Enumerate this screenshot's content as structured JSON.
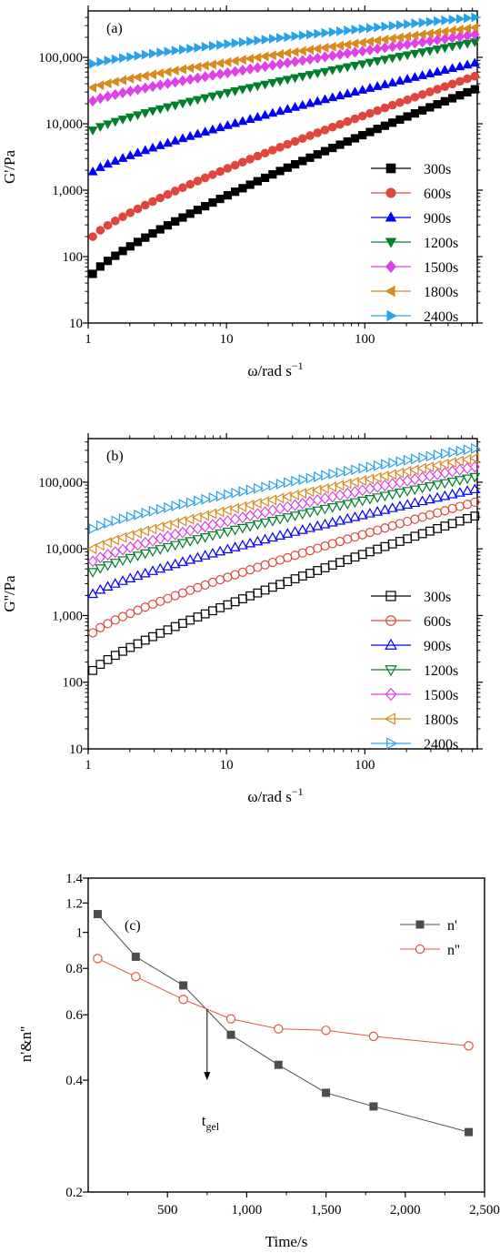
{
  "chart_data": [
    {
      "id": "a",
      "type": "scatter",
      "panel_label": "(a)",
      "xlabel_main": "ω/rad s",
      "xlabel_sup": "−1",
      "ylabel": "G'/Pa",
      "xscale": "log",
      "yscale": "log",
      "xlim": [
        1,
        650
      ],
      "ylim": [
        10,
        500000
      ],
      "xticks": [
        1,
        10,
        100
      ],
      "xtick_labels": [
        "1",
        "10",
        "100"
      ],
      "yticks": [
        10,
        100,
        1000,
        10000,
        100000
      ],
      "ytick_labels": [
        "10",
        "100",
        "1,000",
        "10,000",
        "100,000"
      ],
      "legend_position": "right",
      "marker_fill": "filled",
      "points_per_series": 52,
      "series": [
        {
          "name": "300s",
          "color": "#000000",
          "marker": "square",
          "y_start": 55,
          "y_end": 33000
        },
        {
          "name": "600s",
          "color": "#e0463c",
          "marker": "circle",
          "y_start": 200,
          "y_end": 52000
        },
        {
          "name": "900s",
          "color": "#0000ff",
          "marker": "triangle-up",
          "y_start": 1900,
          "y_end": 82000
        },
        {
          "name": "1200s",
          "color": "#00802b",
          "marker": "triangle-down",
          "y_start": 8000,
          "y_end": 170000
        },
        {
          "name": "1500s",
          "color": "#e040e8",
          "marker": "diamond",
          "y_start": 22000,
          "y_end": 220000
        },
        {
          "name": "1800s",
          "color": "#d98a1c",
          "marker": "triangle-left",
          "y_start": 35000,
          "y_end": 280000
        },
        {
          "name": "2400s",
          "color": "#29a3e8",
          "marker": "triangle-right",
          "y_start": 80000,
          "y_end": 400000
        }
      ]
    },
    {
      "id": "b",
      "type": "scatter",
      "panel_label": "(b)",
      "xlabel_main": "ω/rad s",
      "xlabel_sup": "−1",
      "ylabel": "G''/Pa",
      "xscale": "log",
      "yscale": "log",
      "xlim": [
        1,
        650
      ],
      "ylim": [
        10,
        450000
      ],
      "xticks": [
        1,
        10,
        100
      ],
      "xtick_labels": [
        "1",
        "10",
        "100"
      ],
      "yticks": [
        10,
        100,
        1000,
        10000,
        100000
      ],
      "ytick_labels": [
        "10",
        "100",
        "1,000",
        "10,000",
        "100,000"
      ],
      "legend_position": "right",
      "marker_fill": "open",
      "points_per_series": 52,
      "series": [
        {
          "name": "300s",
          "color": "#000000",
          "marker": "square",
          "y_start": 150,
          "y_end": 31000
        },
        {
          "name": "600s",
          "color": "#e0463c",
          "marker": "circle",
          "y_start": 550,
          "y_end": 50000
        },
        {
          "name": "900s",
          "color": "#0000ff",
          "marker": "triangle-up",
          "y_start": 2100,
          "y_end": 78000
        },
        {
          "name": "1200s",
          "color": "#00802b",
          "marker": "triangle-down",
          "y_start": 4500,
          "y_end": 120000
        },
        {
          "name": "1500s",
          "color": "#e040e8",
          "marker": "diamond",
          "y_start": 6500,
          "y_end": 170000
        },
        {
          "name": "1800s",
          "color": "#d98a1c",
          "marker": "triangle-left",
          "y_start": 10000,
          "y_end": 230000
        },
        {
          "name": "2400s",
          "color": "#29a3e8",
          "marker": "triangle-right",
          "y_start": 20000,
          "y_end": 320000
        }
      ]
    },
    {
      "id": "c",
      "type": "line",
      "panel_label": "(c)",
      "xlabel": "Time/s",
      "ylabel": "n'&n''",
      "xscale": "linear",
      "yscale": "log",
      "xlim": [
        0,
        2500
      ],
      "ylim": [
        0.2,
        1.4
      ],
      "xticks": [
        500,
        1000,
        1500,
        2000,
        2500
      ],
      "xtick_labels": [
        "500",
        "1,000",
        "1,500",
        "2,000",
        "2,500"
      ],
      "yticks": [
        0.2,
        0.4,
        0.6,
        0.8,
        1,
        1.2,
        1.4
      ],
      "ytick_labels": [
        "0.2",
        "0.4",
        "0.6",
        "0.8",
        "1",
        "1.2",
        "1.4"
      ],
      "legend_position": "top-right",
      "series": [
        {
          "name": "n'",
          "color": "#4d4d4d",
          "marker": "square",
          "fill": "filled",
          "x": [
            60,
            300,
            600,
            900,
            1200,
            1500,
            1800,
            2400
          ],
          "y": [
            1.12,
            0.86,
            0.72,
            0.53,
            0.44,
            0.37,
            0.34,
            0.29
          ]
        },
        {
          "name": "n''",
          "color": "#e0563c",
          "marker": "circle",
          "fill": "open",
          "x": [
            60,
            300,
            600,
            900,
            1200,
            1500,
            1800,
            2400
          ],
          "y": [
            0.85,
            0.76,
            0.66,
            0.585,
            0.55,
            0.545,
            0.525,
            0.495
          ]
        }
      ],
      "annotation": {
        "text_main": "t",
        "text_sub": "gel",
        "x": 750,
        "y_from": 0.62,
        "y_to": 0.4
      }
    }
  ]
}
